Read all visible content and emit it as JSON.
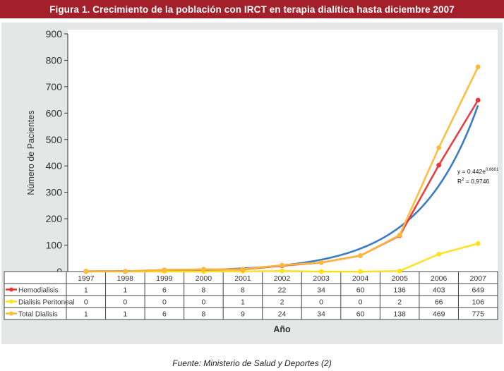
{
  "title": "Figura 1. Crecimiento de la población con IRCT en terapia dialítica hasta diciembre 2007",
  "footer": "Fuente: Ministerio de Salud y Deportes (2)",
  "chart_data": {
    "type": "line",
    "ylabel": "Número de Pacientes",
    "xlabel": "Año",
    "ylim": [
      0,
      900
    ],
    "yticks": [
      0,
      100,
      200,
      300,
      400,
      500,
      600,
      700,
      800,
      900
    ],
    "categories": [
      "1997",
      "1998",
      "1999",
      "2000",
      "2001",
      "2002",
      "2003",
      "2004",
      "2005",
      "2006",
      "2007"
    ],
    "series": [
      {
        "name": "Hemodialisis",
        "color": "#e8343a",
        "values": [
          1,
          1,
          6,
          8,
          8,
          22,
          34,
          60,
          136,
          403,
          649
        ]
      },
      {
        "name": "Dialisis Peritoneal",
        "color": "#ffe21a",
        "values": [
          0,
          0,
          0,
          0,
          1,
          2,
          0,
          0,
          2,
          66,
          106
        ]
      },
      {
        "name": "Total Dialisis",
        "color": "#fdbb3a",
        "values": [
          1,
          1,
          6,
          8,
          9,
          24,
          34,
          60,
          138,
          469,
          775
        ]
      }
    ],
    "trendline": {
      "color": "#3a7cc8",
      "equation_prefix": "y = 0.442e",
      "equation_exp": "0,6601",
      "r2_label": "R",
      "r2_sup": "2",
      "r2_value": " = 0,9746"
    },
    "grid": false,
    "legend": "data-table"
  }
}
